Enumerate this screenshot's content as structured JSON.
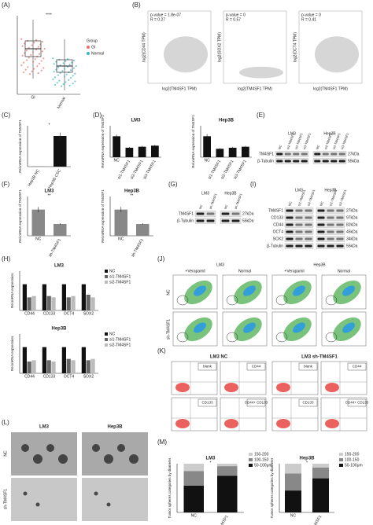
{
  "panel_labels": [
    "(A)",
    "(B)",
    "(C)",
    "(D)",
    "(E)",
    "(F)",
    "(G)",
    "(H)",
    "(I)",
    "(J)",
    "(K)",
    "(L)",
    "(M)"
  ],
  "chart_data": [
    {
      "type": "box",
      "annotation": "****",
      "legend_title": "Group",
      "categories": [
        "GI",
        "Normal"
      ],
      "colors": [
        "#e8736c",
        "#3fb6c8"
      ],
      "whisker_low": [
        0.2,
        0.05
      ],
      "q1": [
        0.48,
        0.28
      ],
      "median": [
        0.58,
        0.36
      ],
      "q3": [
        0.68,
        0.44
      ],
      "whisker_high": [
        0.95,
        0.7
      ],
      "ylim": [
        0,
        1
      ]
    },
    {
      "type": "bar",
      "annotation": "*",
      "y_label": "Rel.mRNA expression of TM4SF1",
      "categories": [
        "Hep3B NC",
        "Hep3B CSC"
      ],
      "values": [
        1,
        450
      ],
      "errors": [
        0.3,
        50
      ],
      "color": "#111111",
      "ylim": [
        0,
        600
      ]
    },
    {
      "type": "bar",
      "title": "LM3",
      "y_label": "Rel.mRNA expression of TM4SF1",
      "categories": [
        "NC",
        "si1-TM4SF1",
        "si2-TM4SF1",
        "si3-TM4SF1"
      ],
      "values": [
        1.0,
        0.45,
        0.5,
        0.55
      ],
      "errors": [
        0.08,
        0.04,
        0.04,
        0.04
      ],
      "color": "#111111",
      "ylim": [
        0,
        1.5
      ]
    },
    {
      "type": "bar",
      "title": "Hep3B",
      "y_label": "Rel.mRNA expression of TM4SF1",
      "categories": [
        "NC",
        "si1-TM4SF1",
        "si2-TM4SF1",
        "si3-TM4SF1"
      ],
      "values": [
        1.0,
        0.4,
        0.45,
        0.5
      ],
      "errors": [
        0.1,
        0.04,
        0.04,
        0.04
      ],
      "color": "#111111",
      "ylim": [
        0,
        1.5
      ]
    },
    {
      "type": "bar",
      "title": "LM3",
      "annotation": "**",
      "y_label": "Rel.mRNA expression of TM4SF1",
      "categories": [
        "NC",
        "sh-TM4SF1"
      ],
      "values": [
        1.0,
        0.45
      ],
      "errors": [
        0.1,
        0.03
      ],
      "color": "#888888",
      "ylim": [
        0,
        1.5
      ]
    },
    {
      "type": "bar",
      "title": "Hep3B",
      "annotation": "**",
      "y_label": "Rel.mRNA expression of TM4SF1",
      "categories": [
        "NC",
        "sh-TM4SF1"
      ],
      "values": [
        1.0,
        0.45
      ],
      "errors": [
        0.1,
        0.03
      ],
      "color": "#888888",
      "ylim": [
        0,
        1.5
      ]
    },
    {
      "type": "grouped",
      "title": "LM3",
      "y_label": "Rel.mRNA expression",
      "categories": [
        "CD44",
        "CD133",
        "OCT4",
        "SOX2"
      ],
      "ylim": [
        0,
        1.5
      ],
      "series": [
        {
          "name": "NC",
          "color": "#111111",
          "values": [
            1,
            1,
            1,
            1
          ]
        },
        {
          "name": "si1-TM4SF1",
          "color": "#666666",
          "values": [
            0.5,
            0.55,
            0.5,
            0.6
          ]
        },
        {
          "name": "si2-TM4SF1",
          "color": "#bbbbbb",
          "values": [
            0.55,
            0.5,
            0.55,
            0.5
          ]
        }
      ]
    },
    {
      "type": "grouped",
      "title": "Hep3B",
      "y_label": "Rel.mRNA expression",
      "categories": [
        "CD44",
        "CD133",
        "OCT4",
        "SOX2"
      ],
      "ylim": [
        0,
        1.5
      ],
      "series": [
        {
          "name": "NC",
          "color": "#111111",
          "values": [
            1,
            1,
            1,
            1
          ]
        },
        {
          "name": "si1-TM4SF1",
          "color": "#666666",
          "values": [
            0.45,
            0.5,
            0.55,
            0.5
          ]
        },
        {
          "name": "si2-TM4SF1",
          "color": "#bbbbbb",
          "values": [
            0.5,
            0.45,
            0.5,
            0.55
          ]
        }
      ]
    },
    {
      "type": "stacked",
      "title": "LM3",
      "annotation": "*",
      "y_label": "Tumor spheres categories by diameter",
      "categories": [
        "NC",
        "sh-TM4SF1"
      ],
      "ylim": [
        0,
        100
      ],
      "series": [
        {
          "name": "50-100μm",
          "color": "#111111",
          "values": [
            55,
            75
          ]
        },
        {
          "name": "100-150",
          "color": "#888888",
          "values": [
            30,
            20
          ]
        },
        {
          "name": "150-200",
          "color": "#cccccc",
          "values": [
            15,
            5
          ]
        }
      ]
    },
    {
      "type": "stacked",
      "title": "Hep3B",
      "annotation": "*",
      "y_label": "Tumor spheres categories by diameter",
      "categories": [
        "NC",
        "sh-TM4SF1"
      ],
      "ylim": [
        0,
        100
      ],
      "series": [
        {
          "name": "50-100μm",
          "color": "#111111",
          "values": [
            45,
            70
          ]
        },
        {
          "name": "100-150",
          "color": "#888888",
          "values": [
            35,
            22
          ]
        },
        {
          "name": "150-200",
          "color": "#cccccc",
          "values": [
            20,
            8
          ]
        }
      ]
    }
  ],
  "scatter": {
    "x_label": "log2(TM4SF1 TPM)",
    "plots": [
      {
        "stats": [
          "p-value = 1.8e-07",
          "R = 0.27"
        ],
        "y_label": "log2(CD44 TPM)"
      },
      {
        "stats": [
          "p-value = 0",
          "R = 0.57"
        ],
        "y_label": "log2(SOX2 TPM)"
      },
      {
        "stats": [
          "p-value = 0",
          "R = 0.41"
        ],
        "y_label": "log2(OCT4 TPM)"
      }
    ]
  },
  "blots": {
    "E": {
      "groups": [
        "LM3",
        "Hep3B"
      ],
      "lanes": [
        [
          "NC",
          "si1-TM4SF1",
          "si2-TM4SF1",
          "si3-TM4SF1"
        ],
        [
          "NC",
          "si1-TM4SF1",
          "si2-TM4SF1",
          "si3-TM4SF1"
        ]
      ],
      "proteins": [
        "TM4SF1",
        "β-Tubulin"
      ],
      "sizes": [
        "27kDa",
        "55kDa"
      ]
    },
    "G": {
      "groups": [
        "LM3",
        "Hep3B"
      ],
      "lanes": [
        [
          "NC",
          "sh-TM4SF1"
        ],
        [
          "NC",
          "sh-TM4SF1"
        ]
      ],
      "proteins": [
        "TM4SF1",
        "β-Tubulin"
      ],
      "sizes": [
        "27kDa",
        "55kDa"
      ]
    },
    "I": {
      "groups": [
        "LM3",
        "Hep3B"
      ],
      "lanes": [
        [
          "NC",
          "si1-TM4SF1",
          "si2-TM4SF1"
        ],
        [
          "NC",
          "si1-TM4SF1",
          "si2-TM4SF1"
        ]
      ],
      "proteins": [
        "TM4SF1",
        "CD133",
        "CD44",
        "OCT4",
        "SOX2",
        "β-Tubulin"
      ],
      "sizes": [
        "27kDa",
        "97kDa",
        "82kDa",
        "45kDa",
        "34kDa",
        "55kDa"
      ]
    }
  },
  "flow_J": {
    "cell_lines": [
      "LM3",
      "Hep3B"
    ],
    "conditions": [
      "+Verapamil",
      "Normal"
    ],
    "rows": [
      "NC",
      "sh-TM4SF1"
    ]
  },
  "flow_K": {
    "titles": [
      "LM3 NC",
      "LM3 sh-TM4SF1"
    ],
    "gates": [
      "blank",
      "CD44",
      "CD133",
      "CD44+ CD133"
    ]
  },
  "images_L": {
    "columns": [
      "LM3",
      "Hep3B"
    ],
    "rows": [
      "NC",
      "sh-TM4SF1"
    ]
  }
}
